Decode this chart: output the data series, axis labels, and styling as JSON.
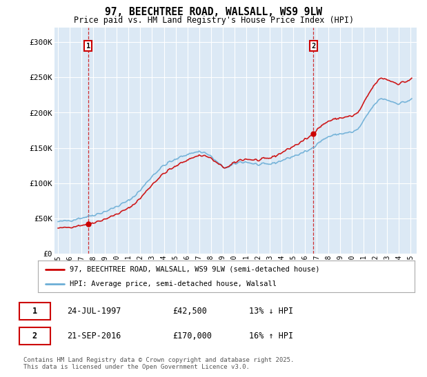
{
  "title": "97, BEECHTREE ROAD, WALSALL, WS9 9LW",
  "subtitle": "Price paid vs. HM Land Registry's House Price Index (HPI)",
  "legend_line1": "97, BEECHTREE ROAD, WALSALL, WS9 9LW (semi-detached house)",
  "legend_line2": "HPI: Average price, semi-detached house, Walsall",
  "footnote": "Contains HM Land Registry data © Crown copyright and database right 2025.\nThis data is licensed under the Open Government Licence v3.0.",
  "marker1_date": "24-JUL-1997",
  "marker1_price": "£42,500",
  "marker1_hpi": "13% ↓ HPI",
  "marker2_date": "21-SEP-2016",
  "marker2_price": "£170,000",
  "marker2_hpi": "16% ↑ HPI",
  "hpi_color": "#6baed6",
  "price_color": "#cc0000",
  "plot_bg_color": "#dce9f5",
  "ylim": [
    0,
    320000
  ],
  "yticks": [
    0,
    50000,
    100000,
    150000,
    200000,
    250000,
    300000
  ],
  "ytick_labels": [
    "£0",
    "£50K",
    "£100K",
    "£150K",
    "£200K",
    "£250K",
    "£300K"
  ],
  "marker1_x": 1997.56,
  "marker1_y": 42500,
  "marker2_x": 2016.72,
  "marker2_y": 170000,
  "xtick_years": [
    1995,
    1996,
    1997,
    1998,
    1999,
    2000,
    2001,
    2002,
    2003,
    2004,
    2005,
    2006,
    2007,
    2008,
    2009,
    2010,
    2011,
    2012,
    2013,
    2014,
    2015,
    2016,
    2017,
    2018,
    2019,
    2020,
    2021,
    2022,
    2023,
    2024,
    2025
  ]
}
